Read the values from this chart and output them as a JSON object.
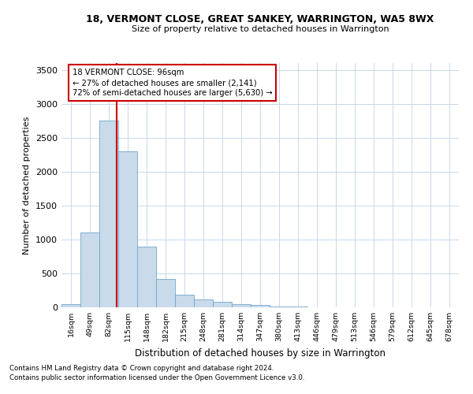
{
  "title": "18, VERMONT CLOSE, GREAT SANKEY, WARRINGTON, WA5 8WX",
  "subtitle": "Size of property relative to detached houses in Warrington",
  "xlabel": "Distribution of detached houses by size in Warrington",
  "ylabel": "Number of detached properties",
  "bar_color": "#c9daea",
  "bar_edge_color": "#6ea8cc",
  "annotation_line_color": "#cc0000",
  "annotation_box_text": "18 VERMONT CLOSE: 96sqm\n← 27% of detached houses are smaller (2,141)\n72% of semi-detached houses are larger (5,630) →",
  "categories": [
    "16sqm",
    "49sqm",
    "82sqm",
    "115sqm",
    "148sqm",
    "182sqm",
    "215sqm",
    "248sqm",
    "281sqm",
    "314sqm",
    "347sqm",
    "380sqm",
    "413sqm",
    "446sqm",
    "479sqm",
    "513sqm",
    "546sqm",
    "579sqm",
    "612sqm",
    "645sqm",
    "678sqm"
  ],
  "bar_heights": [
    50,
    1100,
    2750,
    2300,
    900,
    420,
    185,
    120,
    80,
    50,
    30,
    15,
    10,
    5,
    3,
    2,
    1,
    1,
    1,
    0,
    0
  ],
  "ylim": [
    0,
    3600
  ],
  "yticks": [
    0,
    500,
    1000,
    1500,
    2000,
    2500,
    3000,
    3500
  ],
  "footer1": "Contains HM Land Registry data © Crown copyright and database right 2024.",
  "footer2": "Contains public sector information licensed under the Open Government Licence v3.0.",
  "background_color": "#ffffff",
  "grid_color": "#c8d8ea",
  "property_line_x": 2.42
}
